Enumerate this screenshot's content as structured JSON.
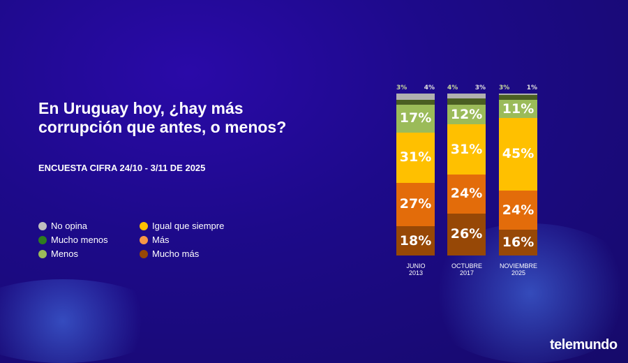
{
  "title": "En Uruguay hoy, ¿hay más corrupción que antes, o menos?",
  "subtitle": "ENCUESTA CIFRA 24/10 - 3/11 DE 2025",
  "logo": "telemundo",
  "chart_data": {
    "type": "stacked-bar",
    "categories": [
      [
        "JUNIO",
        "2013"
      ],
      [
        "OCTUBRE",
        "2017"
      ],
      [
        "NOVIEMBRE",
        "2025"
      ]
    ],
    "series": [
      {
        "name": "Mucho más",
        "color": "#974806",
        "values": [
          18,
          26,
          16
        ]
      },
      {
        "name": "Más",
        "color": "#e36c0a",
        "values": [
          27,
          24,
          24
        ]
      },
      {
        "name": "Igual que siempre",
        "color": "#ffc000",
        "values": [
          31,
          31,
          45
        ]
      },
      {
        "name": "Menos",
        "color": "#9bbb59",
        "values": [
          17,
          12,
          11
        ]
      },
      {
        "name": "Mucho menos",
        "color": "#4a5e22",
        "values": [
          3,
          4,
          3
        ]
      },
      {
        "name": "No opina",
        "color": "#b0b0b0",
        "values": [
          4,
          3,
          1
        ]
      }
    ],
    "legend": [
      {
        "name": "No opina",
        "color": "#bfbfbf"
      },
      {
        "name": "Mucho menos",
        "color": "#2e7d1e"
      },
      {
        "name": "Menos",
        "color": "#9bbb59"
      },
      {
        "name": "Igual que siempre",
        "color": "#ffc000"
      },
      {
        "name": "Más",
        "color": "#f79646"
      },
      {
        "name": "Mucho más",
        "color": "#974806"
      }
    ],
    "unit": "%",
    "ylim": [
      0,
      100
    ]
  }
}
